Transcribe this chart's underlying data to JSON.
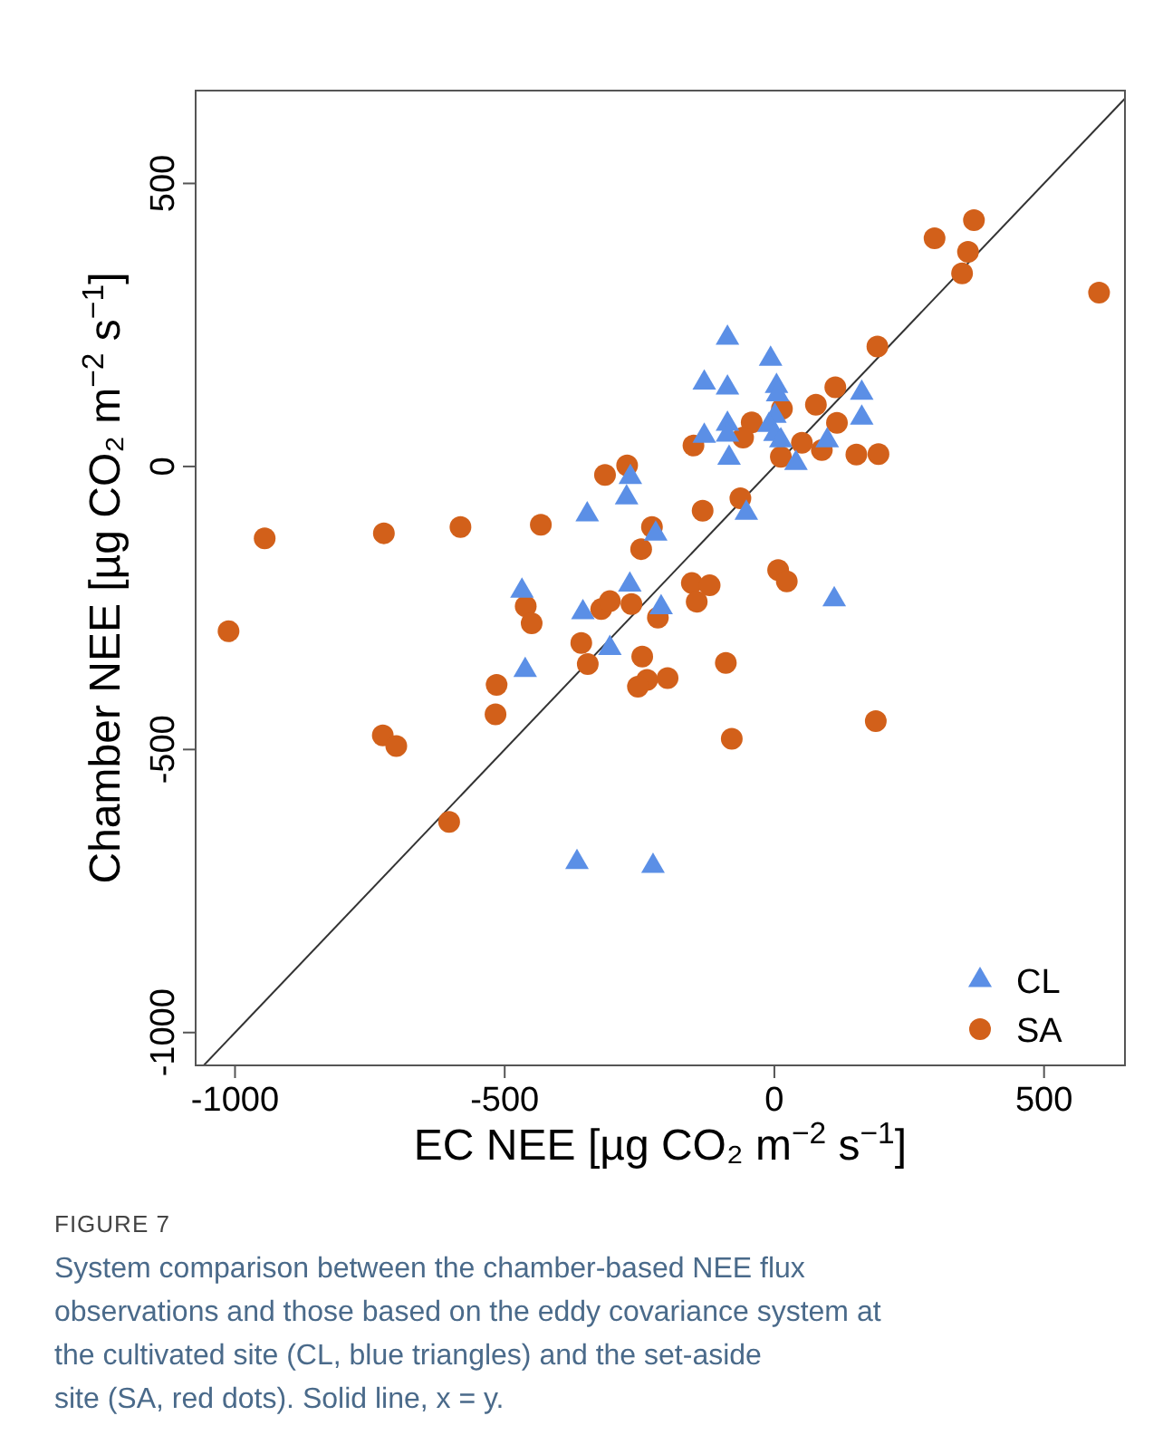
{
  "chart_data": {
    "type": "scatter",
    "xlabel": "EC NEE [µg CO₂ m$^{−2}$ s$^{−1}$]",
    "ylabel": "Chamber NEE [µg CO₂ m$^{−2}$ s$^{−1}$]",
    "xlim": [
      -1073,
      650
    ],
    "ylim": [
      -1058,
      664
    ],
    "xticks": [
      -1000,
      -500,
      0,
      500
    ],
    "yticks": [
      -1000,
      -500,
      0,
      500
    ],
    "legend": "bottom right",
    "series": [
      {
        "name": "CL",
        "color": "#5b8fe6",
        "marker": "triangle",
        "x": [
          -87,
          -7,
          -130,
          -87,
          4,
          6,
          162,
          162,
          -87,
          1,
          -10,
          1,
          -130,
          -87,
          12,
          98,
          -84,
          40,
          -267,
          -274,
          -347,
          -52,
          -220,
          -468,
          -268,
          -355,
          -210,
          -305,
          -462,
          111,
          -366,
          -225
        ],
        "values": [
          227,
          190,
          148,
          139,
          142,
          127,
          130,
          86,
          75,
          89,
          73,
          57,
          54,
          56,
          46,
          46,
          15,
          6,
          -19,
          -55,
          -85,
          -82,
          -119,
          -220,
          -209,
          -258,
          -249,
          -321,
          -360,
          -235,
          -699,
          -706
        ]
      },
      {
        "name": "SA",
        "color": "#d2601a",
        "marker": "circle",
        "x": [
          370,
          297,
          359,
          348,
          602,
          191,
          113,
          77,
          14,
          -42,
          116,
          -58,
          -150,
          51,
          88,
          12,
          152,
          193,
          -273,
          -314,
          -63,
          -133,
          -227,
          -247,
          -945,
          -724,
          -582,
          -433,
          7,
          23,
          -1012,
          -461,
          -450,
          -321,
          -305,
          -265,
          -216,
          -153,
          -120,
          -144,
          -358,
          -346,
          -245,
          -236,
          -253,
          -198,
          -90,
          -515,
          -517,
          -726,
          -701,
          -79,
          188,
          -603
        ],
        "values": [
          435,
          403,
          379,
          341,
          307,
          212,
          140,
          109,
          102,
          78,
          77,
          51,
          37,
          42,
          29,
          17,
          21,
          22,
          2,
          -15,
          -56,
          -78,
          -107,
          -146,
          -127,
          -118,
          -107,
          -103,
          -183,
          -203,
          -291,
          -247,
          -277,
          -252,
          -238,
          -243,
          -267,
          -206,
          -210,
          -239,
          -312,
          -349,
          -336,
          -377,
          -389,
          -374,
          -347,
          -386,
          -438,
          -475,
          -494,
          -481,
          -450,
          -628
        ]
      },
      {
        "type": "line",
        "color": "#333333",
        "line_style": "solid",
        "x": [
          -1058,
          650
        ],
        "values": [
          -1058,
          650
        ]
      }
    ],
    "annotations": [
      "FIGURE 7",
      "System comparison between the chamber-based NEE flux observations and those based on the eddy covariance system at the cultivated site (CL, blue triangles) and the set-aside site (SA, red dots). Solid line, x = y."
    ]
  }
}
